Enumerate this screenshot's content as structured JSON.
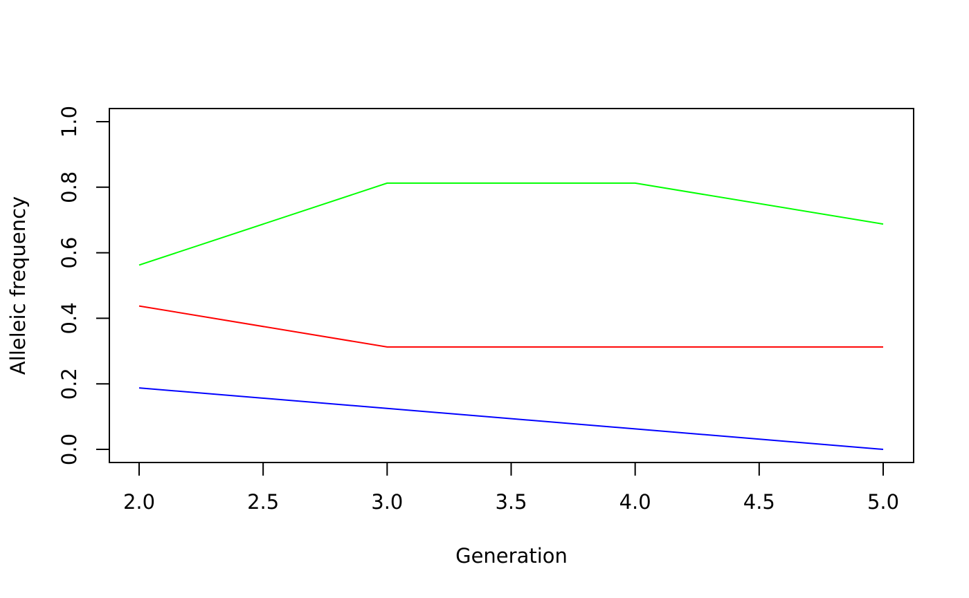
{
  "chart_data": {
    "type": "line",
    "title": "",
    "xlabel": "Generation",
    "ylabel": "Alleleic frequency",
    "x": [
      2,
      3,
      4,
      5
    ],
    "xlim": [
      2,
      5
    ],
    "ylim": [
      0,
      1
    ],
    "x_ticks": [
      "2.0",
      "2.5",
      "3.0",
      "3.5",
      "4.0",
      "4.5",
      "5.0"
    ],
    "y_ticks": [
      "0.0",
      "0.2",
      "0.4",
      "0.6",
      "0.8",
      "1.0"
    ],
    "grid": false,
    "legend": "none",
    "series": [
      {
        "color": "#00ff00",
        "values": [
          0.5625,
          0.8125,
          0.8125,
          0.6875
        ]
      },
      {
        "color": "#ff0000",
        "values": [
          0.4375,
          0.3125,
          0.3125,
          0.3125
        ]
      },
      {
        "color": "#0000ff",
        "values": [
          0.1875,
          0.125,
          0.0625,
          0.0
        ]
      }
    ]
  }
}
